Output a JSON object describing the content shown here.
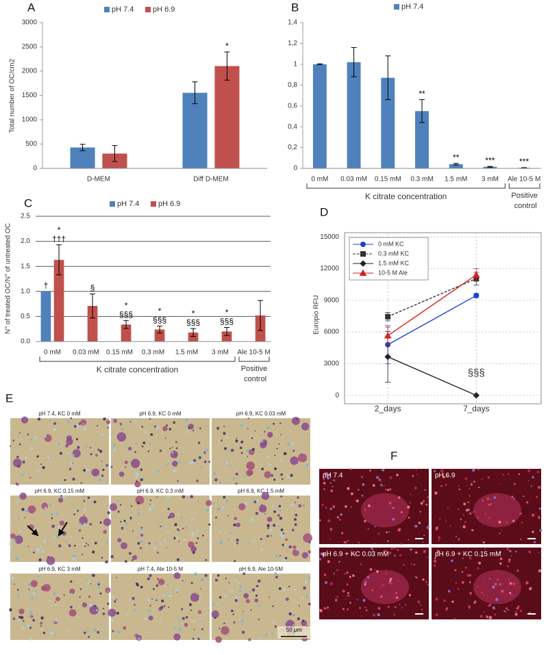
{
  "chart_data": [
    {
      "type": "bar",
      "panel": "A",
      "categories": [
        "D-MEM",
        "Diff D-MEM"
      ],
      "series": [
        {
          "name": "pH 7.4",
          "color": "#4f81bd",
          "values": [
            430,
            1555
          ],
          "error": [
            65,
            225
          ]
        },
        {
          "name": "pH 6.9",
          "color": "#c0504d",
          "values": [
            305,
            2105
          ],
          "error": [
            165,
            290
          ],
          "significance": [
            null,
            [
              "*"
            ]
          ]
        }
      ],
      "ylabel": "Total number of OC/cm2",
      "ylim": [
        0,
        3000
      ],
      "yticks": [
        0,
        500,
        1000,
        1500,
        2000,
        2500,
        3000
      ],
      "grid": false
    },
    {
      "type": "bar",
      "panel": "B",
      "categories": [
        "0 mM",
        "0.03 mM",
        "0.15 mM",
        "0.3 mM",
        "1.5 mM",
        "3 mM",
        "Ale 10-5 M"
      ],
      "series": [
        {
          "name": "pH 7.4",
          "color": "#4f81bd",
          "values": [
            1.0,
            1.02,
            0.87,
            0.55,
            0.04,
            0.015,
            0.005
          ],
          "error": [
            0.005,
            0.14,
            0.21,
            0.11,
            0.008,
            0.004,
            0.002
          ],
          "significance": [
            null,
            null,
            null,
            [
              "**"
            ],
            [
              "**"
            ],
            [
              "***"
            ],
            [
              "***"
            ]
          ]
        }
      ],
      "groups": [
        "K citrate concentration",
        "Positive control"
      ],
      "ylim": [
        0,
        1.4
      ],
      "yticks": [
        0,
        {
          "value": 0.2,
          "label": "0,2"
        },
        {
          "value": 0.4,
          "label": "0,4"
        },
        {
          "value": 0.6,
          "label": "0,6"
        },
        {
          "value": 0.8,
          "label": "0,8"
        },
        1,
        {
          "value": 1.2,
          "label": "1,2"
        },
        {
          "value": 1.4,
          "label": "1,4"
        }
      ],
      "grid": false
    },
    {
      "type": "bar",
      "panel": "C",
      "categories": [
        "0 mM",
        "0.03 mM",
        "0.15 mM",
        "0.3 mM",
        "1.5 mM",
        "3 mM",
        "Ale 10-5 M"
      ],
      "series": [
        {
          "name": "pH 7.4",
          "color": "#4f81bd",
          "values": [
            1.0,
            null,
            null,
            null,
            null,
            null,
            null
          ],
          "significance": [
            [
              "†"
            ],
            null,
            null,
            null,
            null,
            null,
            null
          ]
        },
        {
          "name": "pH 6.9",
          "color": "#c0504d",
          "values": [
            1.63,
            0.71,
            0.34,
            0.24,
            0.18,
            0.2,
            0.52
          ],
          "error": [
            0.3,
            0.24,
            0.08,
            0.07,
            0.08,
            0.08,
            0.3
          ],
          "significance": [
            [
              "*",
              "†††"
            ],
            [
              "§"
            ],
            [
              "*",
              "§§§"
            ],
            [
              "*",
              "§§§"
            ],
            [
              "*",
              "§§§"
            ],
            [
              "*",
              "§§§"
            ],
            null
          ]
        }
      ],
      "groups": [
        "K citrate concentration",
        "Positive control"
      ],
      "ylabel": "N° of treated OC/N° of untreated OC",
      "ylim": [
        0,
        2.5
      ],
      "yticks": [
        {
          "value": 0,
          "label": "0.0"
        },
        0.5,
        {
          "value": 1,
          "label": "1.0"
        },
        1.5,
        {
          "value": 2,
          "label": "2.0"
        },
        2.5
      ],
      "grid": true
    },
    {
      "type": "line",
      "panel": "D",
      "categories": [
        "2_days",
        "7_days"
      ],
      "series": [
        {
          "name": "0 mM KC",
          "color": "#1f3fd6",
          "marker": "circle",
          "dash": false,
          "values": [
            4800,
            9450
          ],
          "error": [
            1800,
            200
          ]
        },
        {
          "name": "0.3 mM KC",
          "color": "#333333",
          "marker": "square",
          "dash": true,
          "values": [
            7450,
            11050
          ],
          "error": [
            400,
            600
          ]
        },
        {
          "name": "1.5 mM KC",
          "color": "#222222",
          "marker": "diamond",
          "dash": false,
          "values": [
            3650,
            0
          ],
          "error": [
            2400,
            null
          ]
        },
        {
          "name": "10-5 M Ale",
          "color": "#d62020",
          "marker": "triangle",
          "dash": false,
          "values": [
            5650,
            11400
          ],
          "error": [
            800,
            600
          ]
        }
      ],
      "annotation": "§§§",
      "ylabel": "Europio RFU",
      "legend": "top-left",
      "ylim": [
        -800,
        15400
      ],
      "yticks": [
        0,
        3000,
        6000,
        9000,
        12000,
        15000
      ],
      "grid": true
    }
  ],
  "micrographs": {
    "panel": "E",
    "images": [
      "pH 7.4, KC 0 mM",
      "pH 6.9, KC 0 mM",
      "pH 6.9, KC 0.03 mM",
      "pH 6.9, KC 0.15 mM",
      "pH 6.9, KC 0.3 mM",
      "pH 6.9, KC 1.5 mM",
      "pH 6.9, KC 3 mM",
      "pH 7.4, Ale 10-5 M",
      "pH 6.9, Ale 10-5M"
    ],
    "scale_bar": "50 μm"
  },
  "fluorescence": {
    "panel": "F",
    "images": [
      "pH 7.4",
      "pH 6.9",
      "pH 6.9 + KC 0.03 mM",
      "pH 6.9 + KC 0.15 mM"
    ]
  }
}
